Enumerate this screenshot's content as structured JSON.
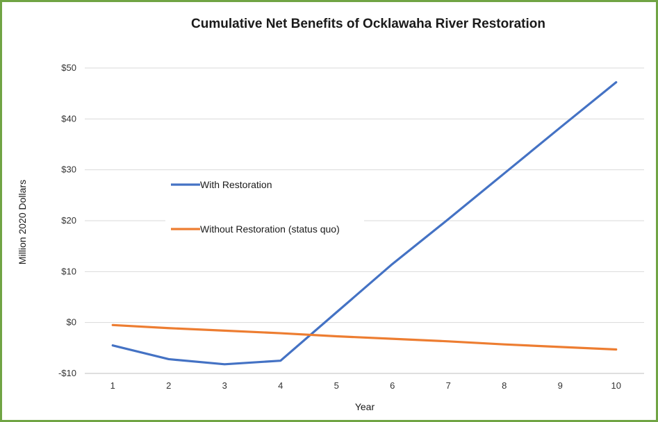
{
  "chart_data": {
    "type": "line",
    "title": "Cumulative Net Benefits of Ocklawaha River Restoration",
    "xlabel": "Year",
    "ylabel": "Million 2020 Dollars",
    "x": [
      1,
      2,
      3,
      4,
      5,
      6,
      7,
      8,
      9,
      10
    ],
    "ylim": [
      -10,
      50
    ],
    "yticks": [
      -10,
      0,
      10,
      20,
      30,
      40,
      50
    ],
    "ytick_labels": [
      "-$10",
      "$0",
      "$10",
      "$20",
      "$30",
      "$40",
      "$50"
    ],
    "grid": "horizontal",
    "legend_position": "middle-left",
    "series": [
      {
        "name": "With Restoration",
        "color": "#4472c4",
        "values": [
          -4.5,
          -7.2,
          -8.2,
          -7.5,
          2.0,
          11.5,
          20.3,
          29.3,
          38.3,
          47.2
        ]
      },
      {
        "name": "Without Restoration (status quo)",
        "color": "#ed7d31",
        "values": [
          -0.5,
          -1.1,
          -1.6,
          -2.1,
          -2.7,
          -3.2,
          -3.7,
          -4.3,
          -4.8,
          -5.3
        ]
      }
    ]
  }
}
